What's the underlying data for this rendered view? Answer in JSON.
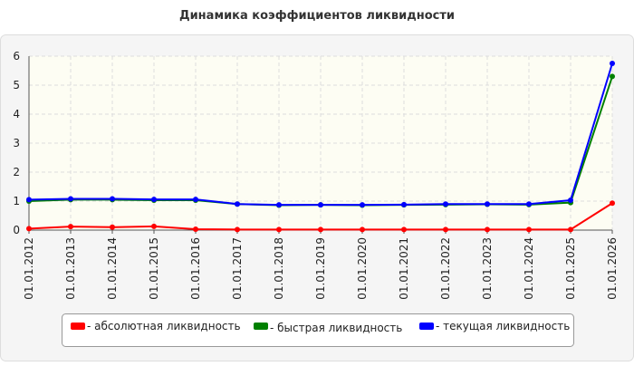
{
  "chart_data": {
    "type": "line",
    "title": "Динамика коэффициентов ликвидности",
    "categories": [
      "01.01.2012",
      "01.01.2013",
      "01.01.2014",
      "01.01.2015",
      "01.01.2016",
      "01.01.2017",
      "01.01.2018",
      "01.01.2019",
      "01.01.2020",
      "01.01.2021",
      "01.01.2022",
      "01.01.2023",
      "01.01.2024",
      "01.01.2025",
      "01.01.2026"
    ],
    "series": [
      {
        "name": "- абсолютная ликвидность",
        "color": "#ff0000",
        "values": [
          0.05,
          0.12,
          0.1,
          0.13,
          0.03,
          0.02,
          0.02,
          0.02,
          0.02,
          0.02,
          0.02,
          0.02,
          0.02,
          0.02,
          0.93
        ]
      },
      {
        "name": "- быстрая ликвидность",
        "color": "#008000",
        "values": [
          1.0,
          1.05,
          1.05,
          1.03,
          1.03,
          0.9,
          0.86,
          0.87,
          0.86,
          0.87,
          0.88,
          0.89,
          0.88,
          0.95,
          5.3
        ]
      },
      {
        "name": "- текущая ликвидность",
        "color": "#0000ff",
        "values": [
          1.05,
          1.08,
          1.08,
          1.06,
          1.06,
          0.9,
          0.87,
          0.87,
          0.87,
          0.88,
          0.9,
          0.9,
          0.9,
          1.03,
          5.75
        ]
      }
    ],
    "ylim": [
      0,
      6
    ],
    "yticks": [
      0,
      1,
      2,
      3,
      4,
      5,
      6
    ],
    "grid": true
  }
}
